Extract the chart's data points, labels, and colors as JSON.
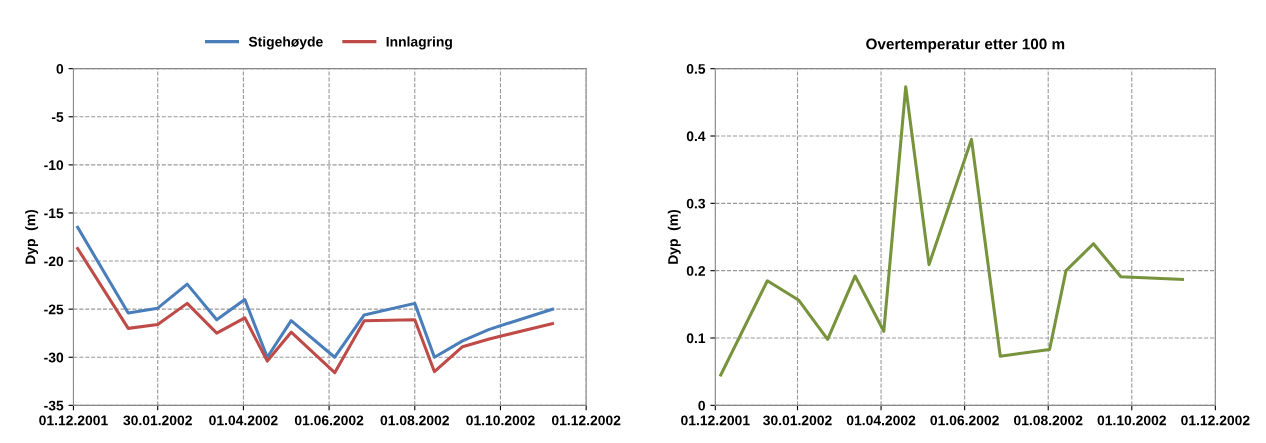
{
  "chart_data": [
    {
      "type": "line",
      "ylabel": "Dyp  (m)",
      "legend": "top",
      "grid": true,
      "line_style": "solid",
      "x": [
        "2001-12-04",
        "2002-01-09",
        "2002-01-30",
        "2002-02-20",
        "2002-03-13",
        "2002-04-02",
        "2002-04-18",
        "2002-05-05",
        "2002-06-05",
        "2002-06-26",
        "2002-08-01",
        "2002-08-15",
        "2002-09-04",
        "2002-09-23",
        "2002-11-07"
      ],
      "series": [
        {
          "name": "Stigehøyde",
          "color": "#4a7ebb",
          "values": [
            -16.5,
            -25.4,
            -24.9,
            -22.4,
            -26.1,
            -24.0,
            -30.0,
            -26.2,
            -30.0,
            -25.6,
            -24.4,
            -30.0,
            -28.3,
            -27.1,
            -25.0
          ]
        },
        {
          "name": "Innlagring",
          "color": "#be4b48",
          "values": [
            -18.7,
            -27.0,
            -26.6,
            -24.4,
            -27.5,
            -25.9,
            -30.4,
            -27.4,
            -31.6,
            -26.2,
            -26.1,
            -31.5,
            -28.9,
            -28.1,
            -26.5
          ]
        }
      ],
      "xlim": [
        "2001-12-01",
        "2002-12-01"
      ],
      "xticks": [
        {
          "value": "2001-12-01",
          "label": "01.12.2001"
        },
        {
          "value": "2002-01-30",
          "label": "30.01.2002"
        },
        {
          "value": "2002-04-01",
          "label": "01.04.2002"
        },
        {
          "value": "2002-06-01",
          "label": "01.06.2002"
        },
        {
          "value": "2002-08-01",
          "label": "01.08.2002"
        },
        {
          "value": "2002-10-01",
          "label": "01.10.2002"
        },
        {
          "value": "2002-12-01",
          "label": "01.12.2002"
        }
      ],
      "ylim": [
        -35,
        0
      ],
      "yticks": [
        -35,
        -30,
        -25,
        -20,
        -15,
        -10,
        -5,
        0
      ]
    },
    {
      "type": "line",
      "title": "Overtemperatur etter 100 m",
      "ylabel": "Dyp  (m)",
      "grid": true,
      "line_style": "solid",
      "x": [
        "2001-12-05",
        "2002-01-08",
        "2002-01-31",
        "2002-02-21",
        "2002-03-13",
        "2002-04-03",
        "2002-04-19",
        "2002-05-06",
        "2002-06-06",
        "2002-06-27",
        "2002-08-02",
        "2002-08-14",
        "2002-09-03",
        "2002-09-23",
        "2002-11-07"
      ],
      "series": [
        {
          "color": "#77933c",
          "values": [
            0.045,
            0.185,
            0.156,
            0.098,
            0.192,
            0.11,
            0.473,
            0.209,
            0.395,
            0.073,
            0.083,
            0.2,
            0.24,
            0.191,
            0.187
          ]
        }
      ],
      "xlim": [
        "2001-12-01",
        "2002-12-01"
      ],
      "xticks": [
        {
          "value": "2001-12-01",
          "label": "01.12.2001"
        },
        {
          "value": "2002-01-30",
          "label": "30.01.2002"
        },
        {
          "value": "2002-04-01",
          "label": "01.04.2002"
        },
        {
          "value": "2002-06-01",
          "label": "01.06.2002"
        },
        {
          "value": "2002-08-01",
          "label": "01.08.2002"
        },
        {
          "value": "2002-10-01",
          "label": "01.10.2002"
        },
        {
          "value": "2002-12-01",
          "label": "01.12.2002"
        }
      ],
      "ylim": [
        0,
        0.5
      ],
      "yticks": [
        0,
        0.1,
        0.2,
        0.3,
        0.4,
        0.5
      ]
    }
  ]
}
